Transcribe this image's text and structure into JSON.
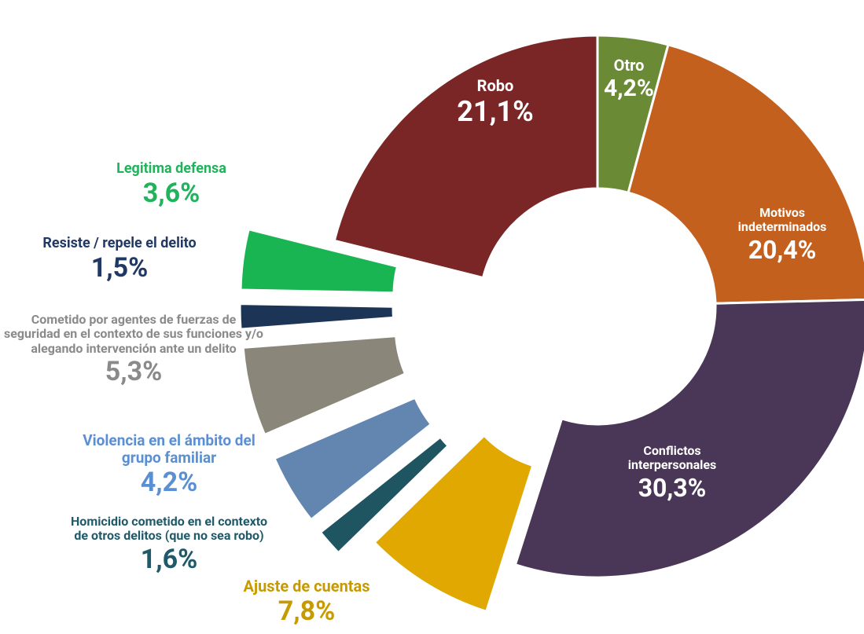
{
  "chart_data": {
    "type": "pie",
    "categories": [
      "Otro",
      "Motivos indeterminados",
      "Conflictos interpersonales",
      "Ajuste de cuentas",
      "Homicidio cometido en el contexto de otros delitos (que no sea robo)",
      "Violencia en el ámbito del grupo familiar",
      "Cometido por agentes de fuerzas de seguridad en el contexto de sus funciones y/o alegando intervención ante un delito",
      "Resiste / repele el delito",
      "Legitima defensa",
      "Robo"
    ],
    "values": [
      4.2,
      20.4,
      30.3,
      7.8,
      1.6,
      4.2,
      5.3,
      1.5,
      3.6,
      21.1
    ],
    "value_labels": [
      "4,2%",
      "20,4%",
      "30,3%",
      "7,8%",
      "1,6%",
      "4,2%",
      "5,3%",
      "1,5%",
      "3,6%",
      "21,1%"
    ],
    "colors": [
      "#6b8a35",
      "#c4601e",
      "#4a3656",
      "#e0a800",
      "#1e5560",
      "#6286b0",
      "#8a877a",
      "#1c3556",
      "#18b552",
      "#7a2626"
    ]
  }
}
